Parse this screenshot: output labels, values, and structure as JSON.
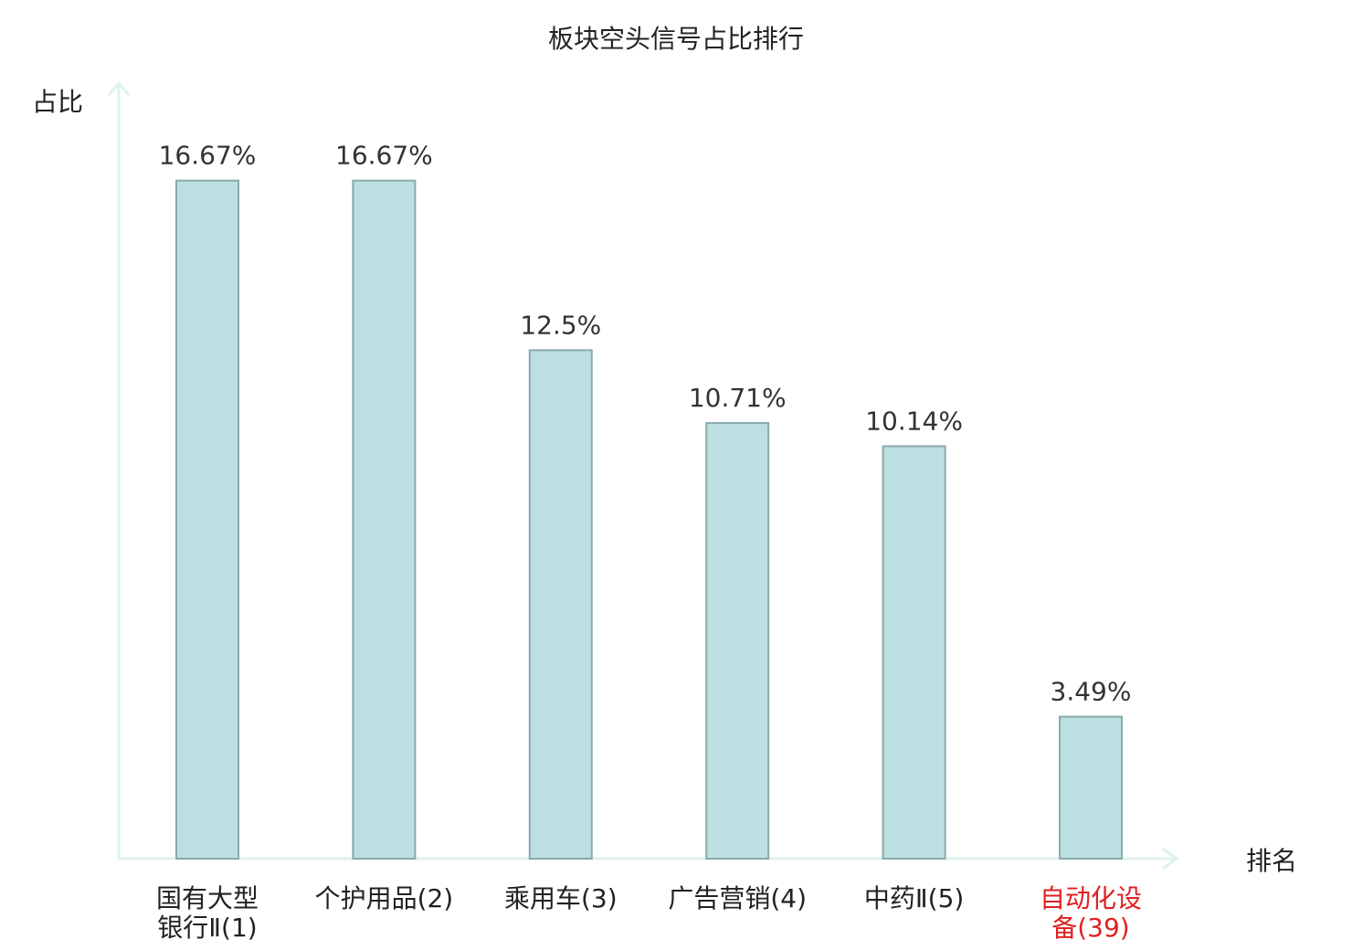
{
  "chart_data": {
    "type": "bar",
    "title": "板块空头信号占比排行",
    "ylabel": "占比",
    "xlabel": "排名",
    "ylim": [
      0,
      19
    ],
    "grid": false,
    "categories": [
      {
        "lines": [
          "国有大型",
          "银行Ⅱ(1)"
        ],
        "highlight": false
      },
      {
        "lines": [
          "个护用品(2)"
        ],
        "highlight": false
      },
      {
        "lines": [
          "乘用车(3)"
        ],
        "highlight": false
      },
      {
        "lines": [
          "广告营销(4)"
        ],
        "highlight": false
      },
      {
        "lines": [
          "中药Ⅱ(5)"
        ],
        "highlight": false
      },
      {
        "lines": [
          "自动化设",
          "备(39)"
        ],
        "highlight": true
      }
    ],
    "values": [
      16.67,
      16.67,
      12.5,
      10.71,
      10.14,
      3.49
    ],
    "value_labels": [
      "16.67%",
      "16.67%",
      "12.5%",
      "10.71%",
      "10.14%",
      "3.49%"
    ],
    "colors": {
      "bar_fill": "#bce0e2",
      "bar_stroke": "#8aa9ab",
      "axis": "#dff2ee",
      "text": "#222222",
      "value_text": "#333333",
      "highlight_text": "#e02020"
    }
  }
}
